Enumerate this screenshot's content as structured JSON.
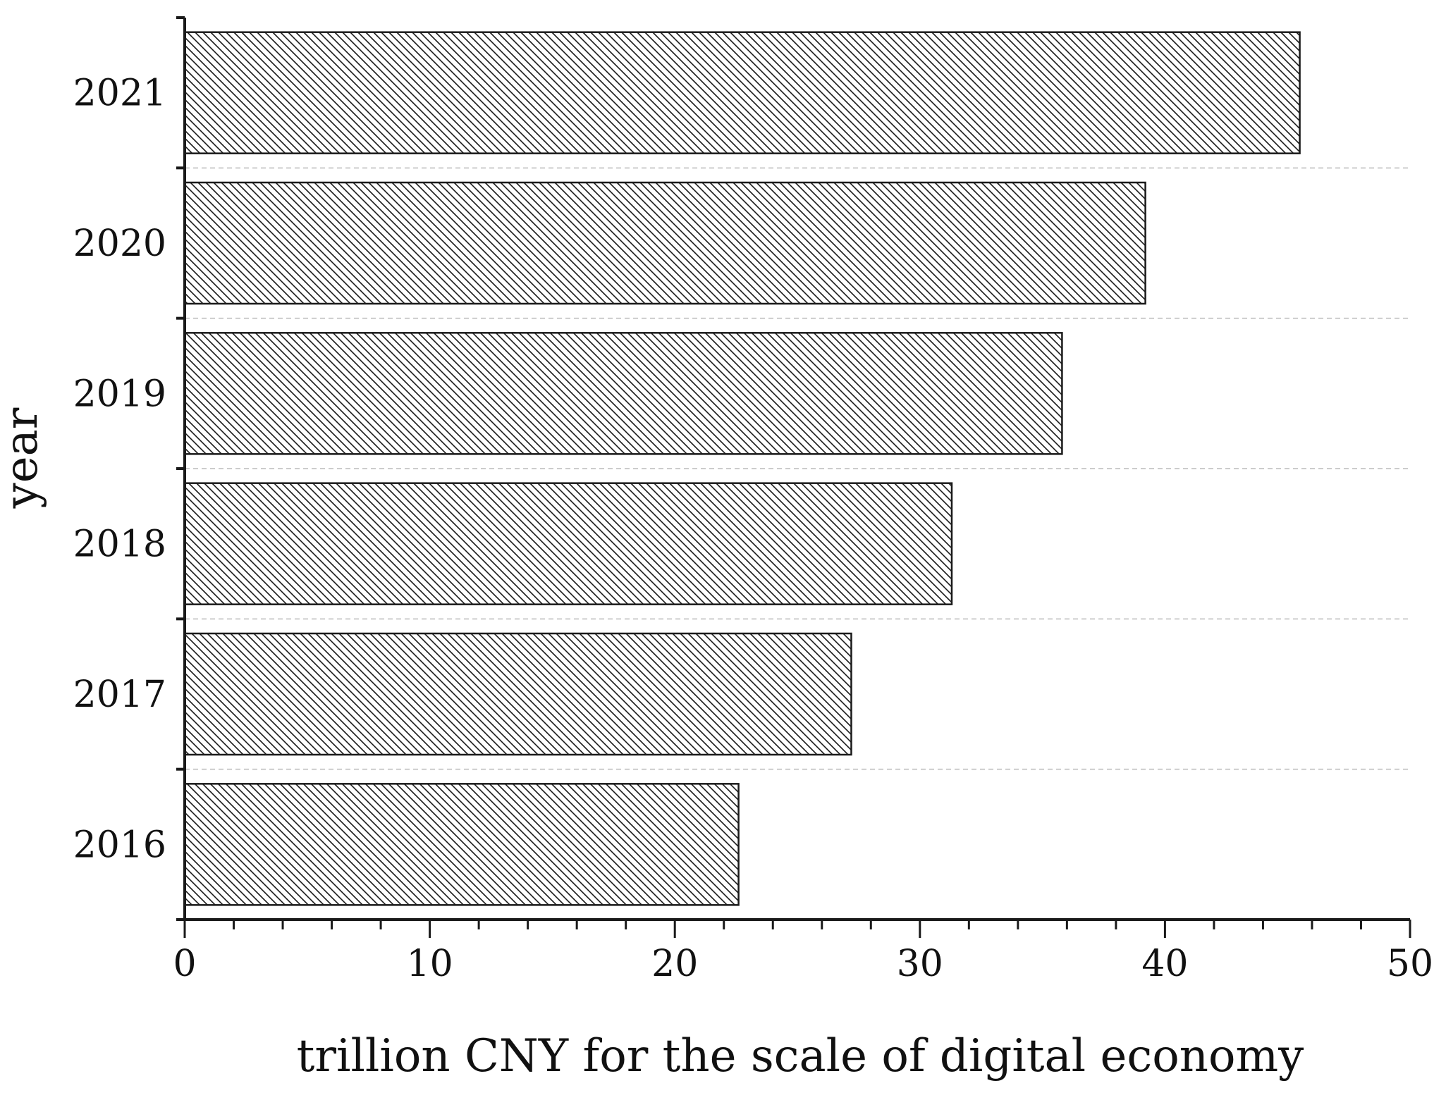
{
  "chart_data": {
    "type": "bar",
    "orientation": "horizontal",
    "categories": [
      "2016",
      "2017",
      "2018",
      "2019",
      "2020",
      "2021"
    ],
    "values": [
      22.6,
      27.2,
      31.3,
      35.8,
      39.2,
      45.5
    ],
    "xlabel": "trillion CNY for the scale of digital economy",
    "ylabel": "year",
    "xlim": [
      0,
      50
    ],
    "x_ticks": [
      "0",
      "10",
      "20",
      "30",
      "40",
      "50"
    ],
    "grid": "horizontal dashed separators",
    "bar_fill": "diagonal hatch",
    "colors": {
      "bar_stroke": "#1a1a1a",
      "hatch": "#1a1a1a",
      "grid": "#bbbbbb"
    }
  }
}
